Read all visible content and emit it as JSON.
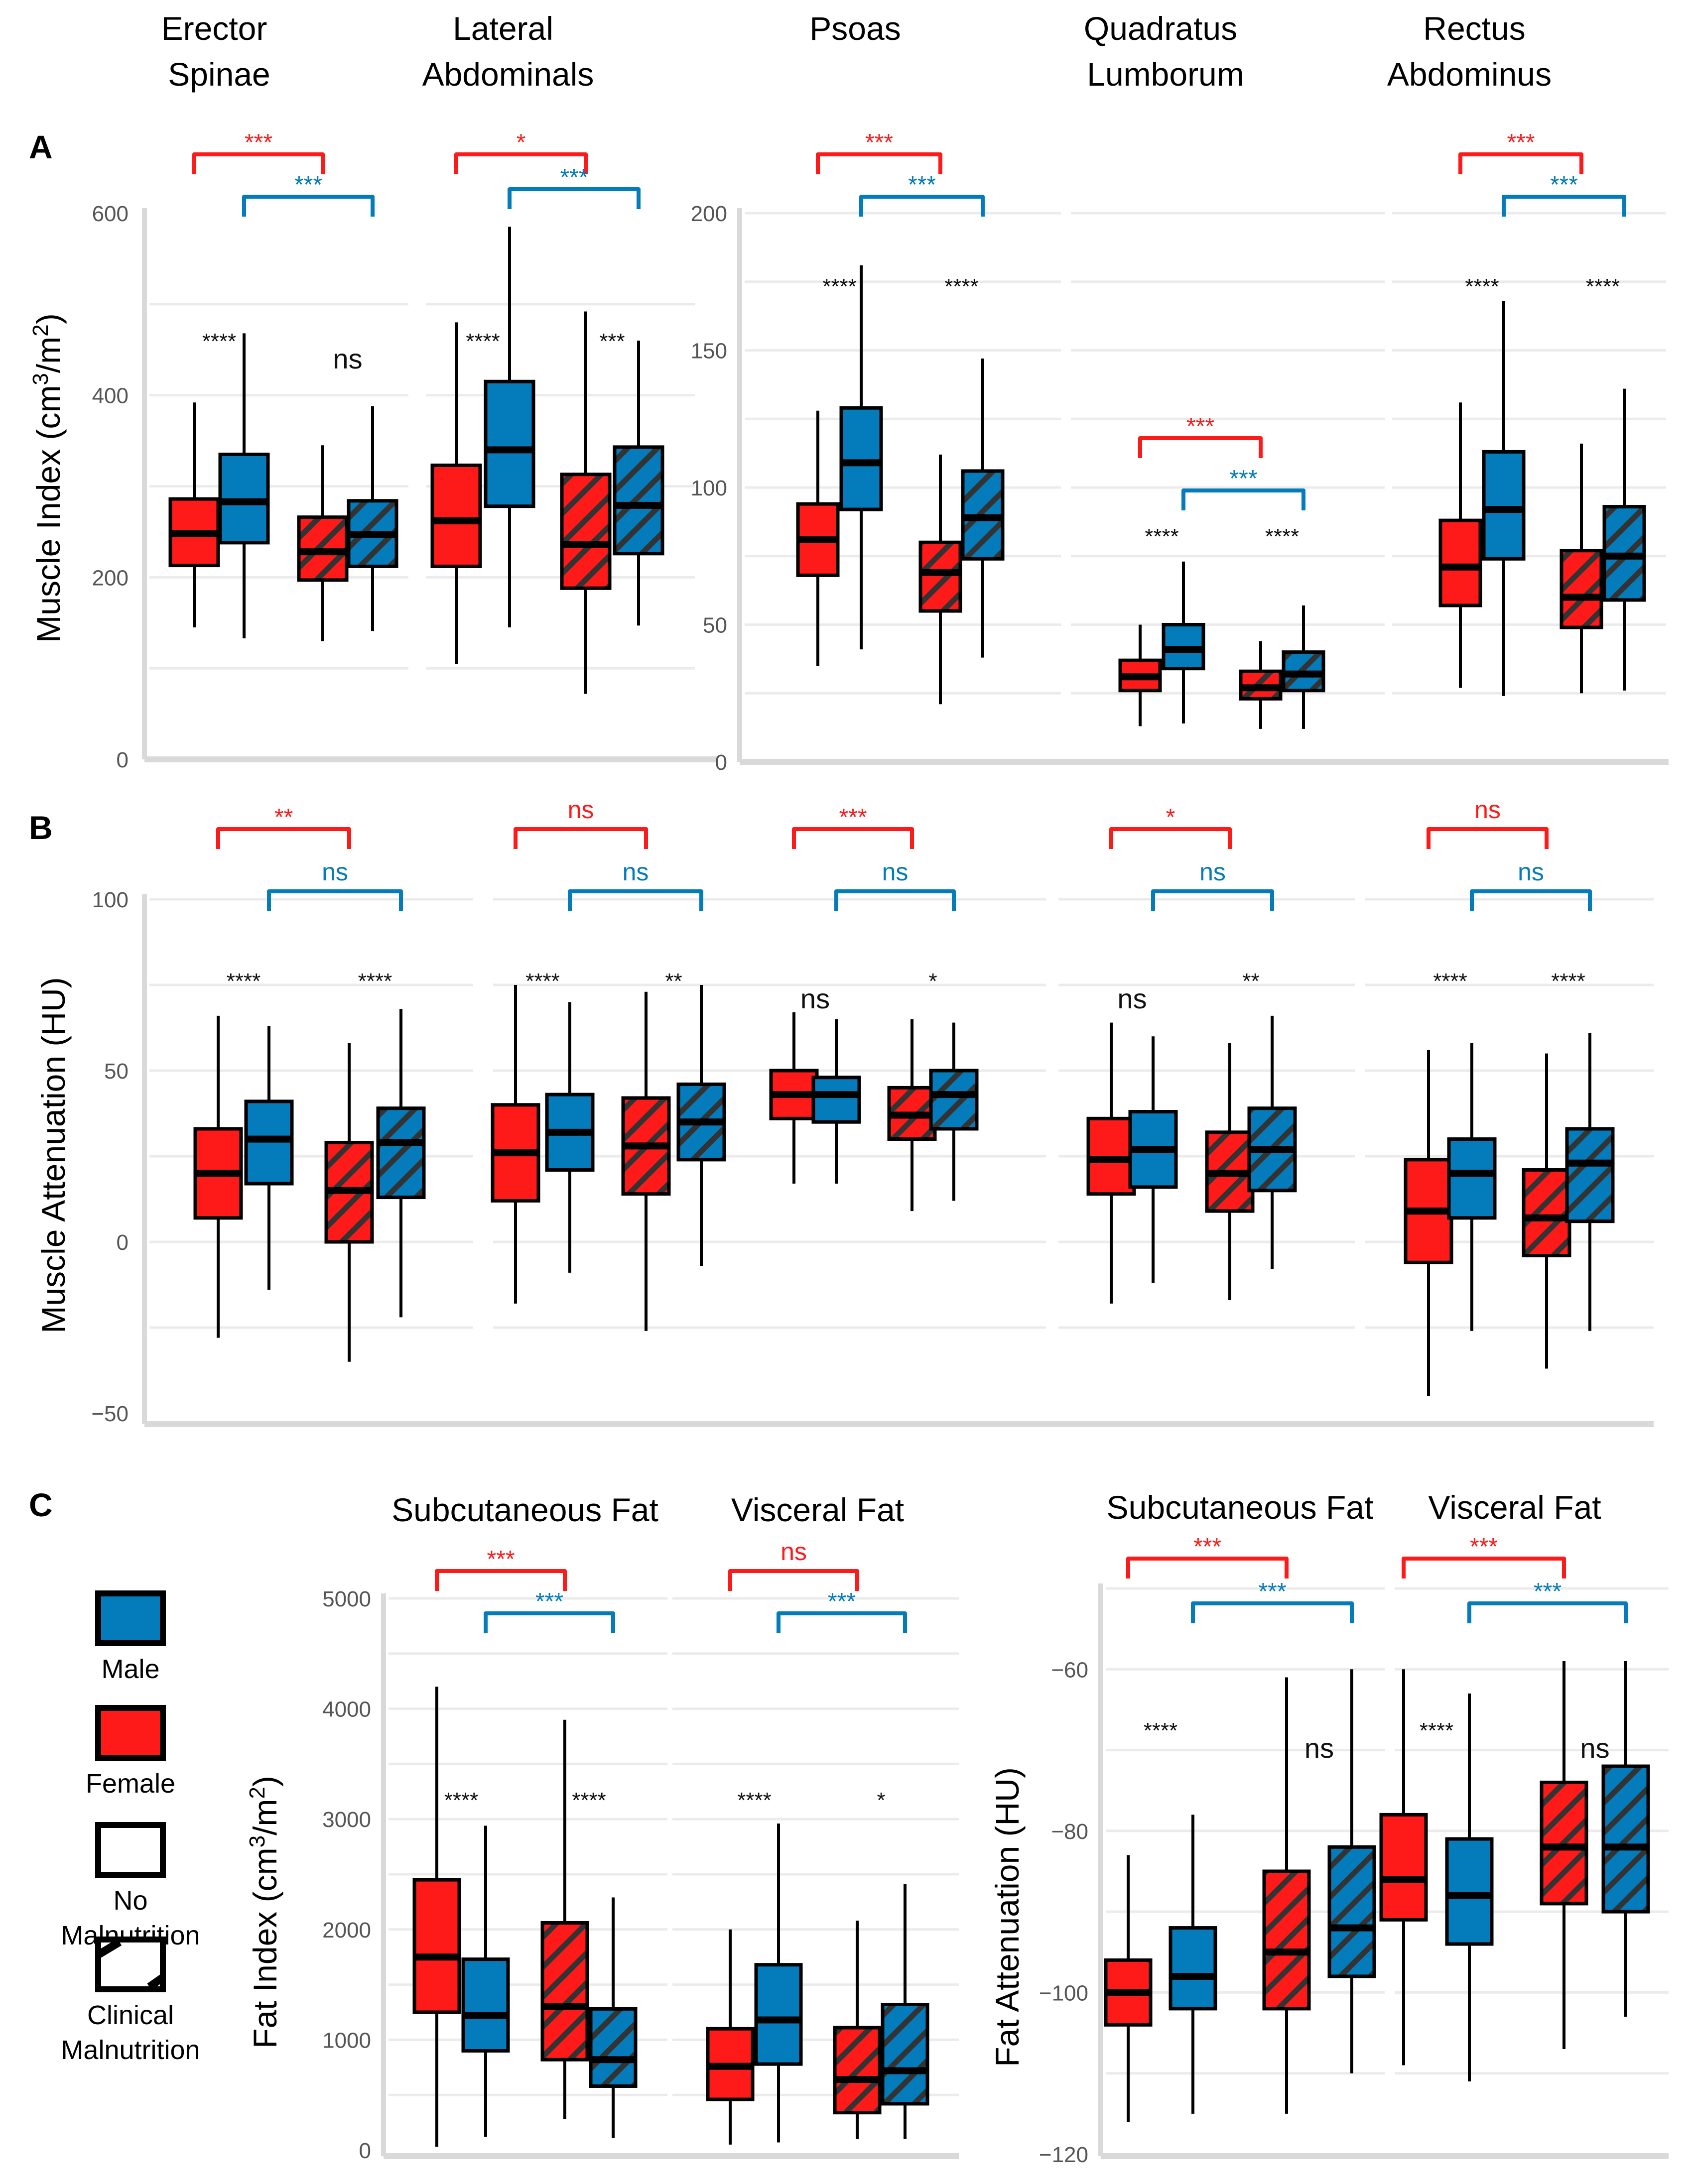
{
  "colors": {
    "female": "#FF1A1A",
    "male": "#047BBA",
    "hatch": "#333333",
    "grid": "#EBEBEB",
    "axis": "#D9D9D9",
    "text": "#000000",
    "tick_text": "#555555"
  },
  "legend": {
    "items": [
      {
        "label": "Male",
        "fill": "male",
        "hatched": false
      },
      {
        "label": "Female",
        "fill": "female",
        "hatched": false
      },
      {
        "label": "No Malnutrition",
        "fill": "none",
        "hatched": false
      },
      {
        "label": "Clinical Malnutrition",
        "fill": "none",
        "hatched": true
      }
    ]
  },
  "panel_letters": [
    "A",
    "B",
    "C"
  ],
  "chart_data": [
    {
      "id": "A-left",
      "panel": "A",
      "type": "box",
      "ylabel": "Muscle Index (cm³/m²)",
      "ylim": [
        0,
        600
      ],
      "yticks": [
        0,
        200,
        400,
        600
      ],
      "minor_grid": [
        100,
        300,
        500
      ],
      "group_order": [
        "Female-No Malnutrition",
        "Male-No Malnutrition",
        "Female-Clinical Malnutrition",
        "Male-Clinical Malnutrition"
      ],
      "facets": [
        {
          "title": "Erector Spinae",
          "boxes": [
            {
              "sex": "Female",
              "malnutrition": false,
              "min": 145,
              "q1": 213,
              "median": 248,
              "q3": 286,
              "max": 392
            },
            {
              "sex": "Male",
              "malnutrition": false,
              "min": 133,
              "q1": 238,
              "median": 283,
              "q3": 335,
              "max": 468
            },
            {
              "sex": "Female",
              "malnutrition": true,
              "min": 130,
              "q1": 197,
              "median": 228,
              "q3": 266,
              "max": 345
            },
            {
              "sex": "Male",
              "malnutrition": true,
              "min": 141,
              "q1": 212,
              "median": 247,
              "q3": 284,
              "max": 388
            }
          ],
          "within_sex_labels": [
            "****",
            "ns"
          ],
          "female_bracket": "***",
          "male_bracket": "***"
        },
        {
          "title": "Lateral Abdominals",
          "boxes": [
            {
              "sex": "Female",
              "malnutrition": false,
              "min": 105,
              "q1": 212,
              "median": 262,
              "q3": 323,
              "max": 480
            },
            {
              "sex": "Male",
              "malnutrition": false,
              "min": 145,
              "q1": 278,
              "median": 340,
              "q3": 415,
              "max": 585
            },
            {
              "sex": "Female",
              "malnutrition": true,
              "min": 72,
              "q1": 188,
              "median": 236,
              "q3": 313,
              "max": 492
            },
            {
              "sex": "Male",
              "malnutrition": true,
              "min": 147,
              "q1": 226,
              "median": 279,
              "q3": 343,
              "max": 460
            }
          ],
          "within_sex_labels": [
            "****",
            "***"
          ],
          "female_bracket": "*",
          "male_bracket": "***"
        }
      ]
    },
    {
      "id": "A-right",
      "panel": "A",
      "type": "box",
      "ylabel": "",
      "ylim": [
        0,
        200
      ],
      "yticks": [
        0,
        50,
        100,
        150,
        200
      ],
      "minor_grid": [
        25,
        75,
        125,
        175
      ],
      "facets": [
        {
          "title": "Psoas",
          "boxes": [
            {
              "sex": "Female",
              "malnutrition": false,
              "min": 35,
              "q1": 68,
              "median": 81,
              "q3": 94,
              "max": 128
            },
            {
              "sex": "Male",
              "malnutrition": false,
              "min": 41,
              "q1": 92,
              "median": 109,
              "q3": 129,
              "max": 181
            },
            {
              "sex": "Female",
              "malnutrition": true,
              "min": 21,
              "q1": 55,
              "median": 69,
              "q3": 80,
              "max": 112
            },
            {
              "sex": "Male",
              "malnutrition": true,
              "min": 38,
              "q1": 74,
              "median": 89,
              "q3": 106,
              "max": 147
            }
          ],
          "within_sex_labels": [
            "****",
            "****"
          ],
          "female_bracket": "***",
          "male_bracket": "***"
        },
        {
          "title": "Quadratus Lumborum",
          "boxes": [
            {
              "sex": "Female",
              "malnutrition": false,
              "min": 13,
              "q1": 26,
              "median": 31,
              "q3": 37,
              "max": 50
            },
            {
              "sex": "Male",
              "malnutrition": false,
              "min": 14,
              "q1": 34,
              "median": 41,
              "q3": 50,
              "max": 73
            },
            {
              "sex": "Female",
              "malnutrition": true,
              "min": 12,
              "q1": 23,
              "median": 27,
              "q3": 33,
              "max": 44
            },
            {
              "sex": "Male",
              "malnutrition": true,
              "min": 12,
              "q1": 26,
              "median": 32,
              "q3": 40,
              "max": 57
            }
          ],
          "within_sex_labels": [
            "****",
            "****"
          ],
          "female_bracket": "***",
          "male_bracket": "***"
        },
        {
          "title": "Rectus Abdominus",
          "boxes": [
            {
              "sex": "Female",
              "malnutrition": false,
              "min": 27,
              "q1": 57,
              "median": 71,
              "q3": 88,
              "max": 131
            },
            {
              "sex": "Male",
              "malnutrition": false,
              "min": 24,
              "q1": 74,
              "median": 92,
              "q3": 113,
              "max": 168
            },
            {
              "sex": "Female",
              "malnutrition": true,
              "min": 25,
              "q1": 49,
              "median": 60,
              "q3": 77,
              "max": 116
            },
            {
              "sex": "Male",
              "malnutrition": true,
              "min": 26,
              "q1": 59,
              "median": 75,
              "q3": 93,
              "max": 136
            }
          ],
          "within_sex_labels": [
            "****",
            "****"
          ],
          "female_bracket": "***",
          "male_bracket": "***"
        }
      ]
    },
    {
      "id": "B",
      "panel": "B",
      "type": "box",
      "ylabel": "Muscle Attenuation (HU)",
      "ylim": [
        -50,
        100
      ],
      "yticks": [
        -50,
        0,
        50,
        100
      ],
      "minor_grid": [
        -25,
        25,
        75
      ],
      "facets": [
        {
          "title": "Erector Spinae",
          "boxes": [
            {
              "sex": "Female",
              "malnutrition": false,
              "min": -28,
              "q1": 7,
              "median": 20,
              "q3": 33,
              "max": 66
            },
            {
              "sex": "Male",
              "malnutrition": false,
              "min": -14,
              "q1": 17,
              "median": 30,
              "q3": 41,
              "max": 63
            },
            {
              "sex": "Female",
              "malnutrition": true,
              "min": -35,
              "q1": 0,
              "median": 15,
              "q3": 29,
              "max": 58
            },
            {
              "sex": "Male",
              "malnutrition": true,
              "min": -22,
              "q1": 13,
              "median": 29,
              "q3": 39,
              "max": 68
            }
          ],
          "within_sex_labels": [
            "****",
            "****"
          ],
          "female_bracket": "**",
          "male_bracket": "ns"
        },
        {
          "title": "Lateral Abdominals",
          "boxes": [
            {
              "sex": "Female",
              "malnutrition": false,
              "min": -18,
              "q1": 12,
              "median": 26,
              "q3": 40,
              "max": 75
            },
            {
              "sex": "Male",
              "malnutrition": false,
              "min": -9,
              "q1": 21,
              "median": 32,
              "q3": 43,
              "max": 70
            },
            {
              "sex": "Female",
              "malnutrition": true,
              "min": -26,
              "q1": 14,
              "median": 28,
              "q3": 42,
              "max": 73
            },
            {
              "sex": "Male",
              "malnutrition": true,
              "min": -7,
              "q1": 24,
              "median": 35,
              "q3": 46,
              "max": 75
            }
          ],
          "within_sex_labels": [
            "****",
            "**"
          ],
          "female_bracket": "ns",
          "male_bracket": "ns"
        },
        {
          "title": "Psoas",
          "boxes": [
            {
              "sex": "Female",
              "malnutrition": false,
              "min": 17,
              "q1": 36,
              "median": 43,
              "q3": 50,
              "max": 67
            },
            {
              "sex": "Male",
              "malnutrition": false,
              "min": 17,
              "q1": 35,
              "median": 43,
              "q3": 48,
              "max": 65
            },
            {
              "sex": "Female",
              "malnutrition": true,
              "min": 9,
              "q1": 30,
              "median": 37,
              "q3": 45,
              "max": 65
            },
            {
              "sex": "Male",
              "malnutrition": true,
              "min": 12,
              "q1": 33,
              "median": 43,
              "q3": 50,
              "max": 64
            }
          ],
          "within_sex_labels": [
            "ns",
            "*"
          ],
          "female_bracket": "***",
          "male_bracket": "ns"
        },
        {
          "title": "Quadratus Lumborum",
          "boxes": [
            {
              "sex": "Female",
              "malnutrition": false,
              "min": -18,
              "q1": 14,
              "median": 24,
              "q3": 36,
              "max": 64
            },
            {
              "sex": "Male",
              "malnutrition": false,
              "min": -12,
              "q1": 16,
              "median": 27,
              "q3": 38,
              "max": 60
            },
            {
              "sex": "Female",
              "malnutrition": true,
              "min": -17,
              "q1": 9,
              "median": 20,
              "q3": 32,
              "max": 58
            },
            {
              "sex": "Male",
              "malnutrition": true,
              "min": -8,
              "q1": 15,
              "median": 27,
              "q3": 39,
              "max": 66
            }
          ],
          "within_sex_labels": [
            "ns",
            "**"
          ],
          "female_bracket": "*",
          "male_bracket": "ns"
        },
        {
          "title": "Rectus Abdominus",
          "boxes": [
            {
              "sex": "Female",
              "malnutrition": false,
              "min": -45,
              "q1": -6,
              "median": 9,
              "q3": 24,
              "max": 56
            },
            {
              "sex": "Male",
              "malnutrition": false,
              "min": -26,
              "q1": 7,
              "median": 20,
              "q3": 30,
              "max": 58
            },
            {
              "sex": "Female",
              "malnutrition": true,
              "min": -37,
              "q1": -4,
              "median": 7,
              "q3": 21,
              "max": 55
            },
            {
              "sex": "Male",
              "malnutrition": true,
              "min": -26,
              "q1": 6,
              "median": 23,
              "q3": 33,
              "max": 61
            }
          ],
          "within_sex_labels": [
            "****",
            "****"
          ],
          "female_bracket": "ns",
          "male_bracket": "ns"
        }
      ]
    },
    {
      "id": "C-index",
      "panel": "C",
      "type": "box",
      "ylabel": "Fat Index (cm³/m²)",
      "ylim": [
        0,
        5000
      ],
      "yticks": [
        0,
        1000,
        2000,
        3000,
        4000,
        5000
      ],
      "minor_grid": [
        500,
        1500,
        2500,
        3500,
        4500
      ],
      "facets": [
        {
          "title": "Subcutaneous Fat",
          "boxes": [
            {
              "sex": "Female",
              "malnutrition": false,
              "min": 30,
              "q1": 1250,
              "median": 1750,
              "q3": 2450,
              "max": 4200
            },
            {
              "sex": "Male",
              "malnutrition": false,
              "min": 120,
              "q1": 900,
              "median": 1220,
              "q3": 1730,
              "max": 2940
            },
            {
              "sex": "Female",
              "malnutrition": true,
              "min": 280,
              "q1": 820,
              "median": 1300,
              "q3": 2060,
              "max": 3900
            },
            {
              "sex": "Male",
              "malnutrition": true,
              "min": 110,
              "q1": 580,
              "median": 820,
              "q3": 1280,
              "max": 2290
            }
          ],
          "within_sex_labels": [
            "****",
            "****"
          ],
          "female_bracket": "***",
          "male_bracket": "***"
        },
        {
          "title": "Visceral Fat",
          "boxes": [
            {
              "sex": "Female",
              "malnutrition": false,
              "min": 50,
              "q1": 460,
              "median": 760,
              "q3": 1100,
              "max": 2000
            },
            {
              "sex": "Male",
              "malnutrition": false,
              "min": 70,
              "q1": 780,
              "median": 1180,
              "q3": 1680,
              "max": 2960
            },
            {
              "sex": "Female",
              "malnutrition": true,
              "min": 100,
              "q1": 340,
              "median": 640,
              "q3": 1110,
              "max": 2080
            },
            {
              "sex": "Male",
              "malnutrition": true,
              "min": 100,
              "q1": 420,
              "median": 720,
              "q3": 1320,
              "max": 2410
            }
          ],
          "within_sex_labels": [
            "****",
            "*"
          ],
          "female_bracket": "ns",
          "male_bracket": "***"
        }
      ]
    },
    {
      "id": "C-attn",
      "panel": "C",
      "type": "box",
      "ylabel": "Fat Attenuation (HU)",
      "ylim": [
        -120,
        -50
      ],
      "yticks": [
        -120,
        -100,
        -80,
        -60
      ],
      "minor_grid": [
        -110,
        -90,
        -70,
        -50
      ],
      "facets": [
        {
          "title": "Subcutaneous Fat",
          "boxes": [
            {
              "sex": "Female",
              "malnutrition": false,
              "min": -116,
              "q1": -104,
              "median": -100,
              "q3": -96,
              "max": -83
            },
            {
              "sex": "Male",
              "malnutrition": false,
              "min": -115,
              "q1": -102,
              "median": -98,
              "q3": -92,
              "max": -78
            },
            {
              "sex": "Female",
              "malnutrition": true,
              "min": -115,
              "q1": -102,
              "median": -95,
              "q3": -85,
              "max": -61
            },
            {
              "sex": "Male",
              "malnutrition": true,
              "min": -110,
              "q1": -98,
              "median": -92,
              "q3": -82,
              "max": -60
            }
          ],
          "within_sex_labels": [
            "****",
            "ns"
          ],
          "female_bracket": "***",
          "male_bracket": "***"
        },
        {
          "title": "Visceral Fat",
          "boxes": [
            {
              "sex": "Female",
              "malnutrition": false,
              "min": -109,
              "q1": -91,
              "median": -86,
              "q3": -78,
              "max": -60
            },
            {
              "sex": "Male",
              "malnutrition": false,
              "min": -111,
              "q1": -94,
              "median": -88,
              "q3": -81,
              "max": -63
            },
            {
              "sex": "Female",
              "malnutrition": true,
              "min": -107,
              "q1": -89,
              "median": -82,
              "q3": -74,
              "max": -59
            },
            {
              "sex": "Male",
              "malnutrition": true,
              "min": -103,
              "q1": -90,
              "median": -82,
              "q3": -72,
              "max": -59
            }
          ],
          "within_sex_labels": [
            "****",
            "ns"
          ],
          "female_bracket": "***",
          "male_bracket": "***"
        }
      ]
    }
  ]
}
